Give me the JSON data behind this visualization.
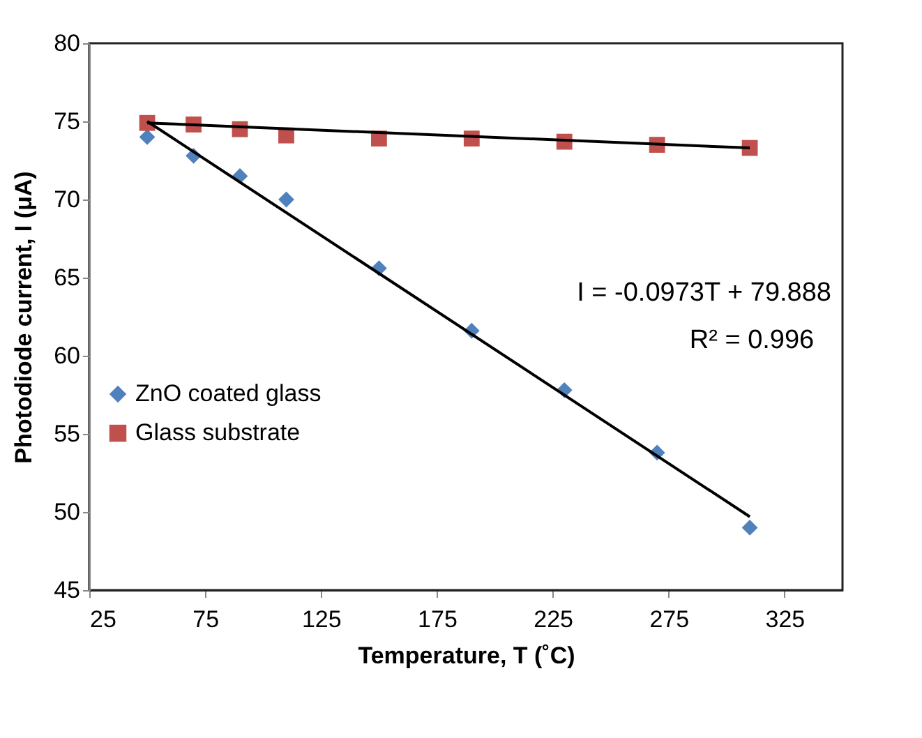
{
  "chart_data": {
    "type": "scatter",
    "xlabel": "Temperature, T (˚C)",
    "ylabel": "Photodiode current, I (μA)",
    "xlim": [
      25,
      350
    ],
    "xticks": [
      25,
      75,
      125,
      175,
      225,
      275,
      325
    ],
    "ylim": [
      45,
      80
    ],
    "yticks": [
      45,
      50,
      55,
      60,
      65,
      70,
      75,
      80
    ],
    "grid": false,
    "legend": "left",
    "series": [
      {
        "name": "ZnO coated glass",
        "type": "scatter",
        "marker": "diamond",
        "color": "#4f81bd",
        "x": [
          50,
          70,
          90,
          110,
          150,
          190,
          230,
          270,
          310
        ],
        "values": [
          74.0,
          72.8,
          71.5,
          70.0,
          65.6,
          61.6,
          57.8,
          53.8,
          49.0
        ]
      },
      {
        "name": "Glass substrate",
        "type": "scatter",
        "marker": "square",
        "color": "#c0504d",
        "x": [
          50,
          70,
          90,
          110,
          150,
          190,
          230,
          270,
          310
        ],
        "values": [
          74.9,
          74.8,
          74.5,
          74.1,
          73.9,
          73.9,
          73.7,
          73.5,
          73.3
        ]
      },
      {
        "type": "line",
        "color": "#000000",
        "x": [
          50,
          310
        ],
        "values": [
          75.0,
          49.7
        ]
      },
      {
        "type": "line",
        "color": "#000000",
        "x": [
          50,
          310
        ],
        "values": [
          74.9,
          73.3
        ]
      }
    ],
    "annotations": [
      "I = -0.0973T + 79.888",
      "R² = 0.996"
    ]
  }
}
